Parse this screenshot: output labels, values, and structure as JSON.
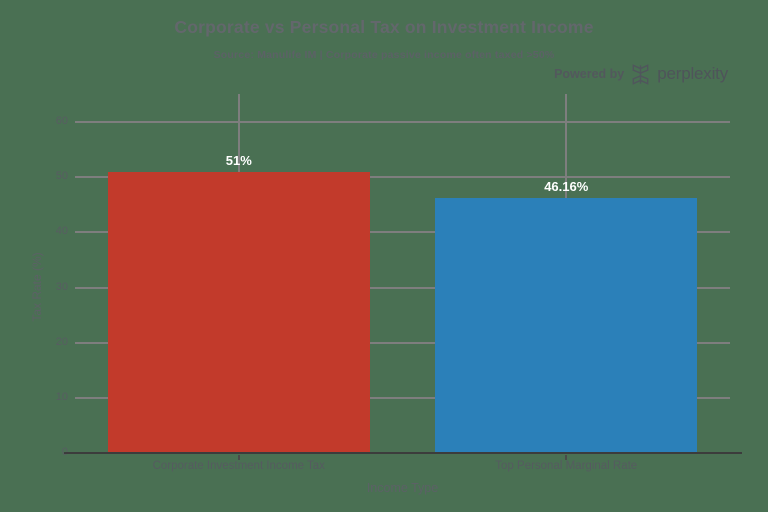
{
  "title": "Corporate vs Personal Tax on Investment Income",
  "subtitle": "Source: Manulife IM | Corporate passive income often taxed >50%",
  "watermark": {
    "prefix": "Powered by",
    "brand": "perplexity",
    "logo_icon": "perplexity-logo-icon"
  },
  "colors": {
    "background": "#4a7053",
    "bar_corporate": "#c23a2b",
    "bar_personal": "#2b80b9",
    "gridline": "#7e7e7e",
    "axis_line": "#3c3c3c",
    "text_muted": "#5c6166",
    "value_label": "#ffffff"
  },
  "chart_data": {
    "type": "bar",
    "categories": [
      "Corporate Investment Income Tax",
      "Top Personal Marginal Rate"
    ],
    "values": [
      51,
      46.16
    ],
    "value_labels": [
      "51%",
      "46.16%"
    ],
    "bar_colors": [
      "#c23a2b",
      "#2b80b9"
    ],
    "title": "Corporate vs Personal Tax on Investment Income",
    "subtitle": "Source: Manulife IM | Corporate passive income often taxed >50%",
    "xlabel": "Income Type",
    "ylabel": "Tax Rate (%)",
    "ylim": [
      0,
      60
    ],
    "yticks": [
      0,
      10,
      20,
      30,
      40,
      50,
      60
    ],
    "grid": true,
    "legend": false,
    "bar_width_fraction": 0.8
  }
}
